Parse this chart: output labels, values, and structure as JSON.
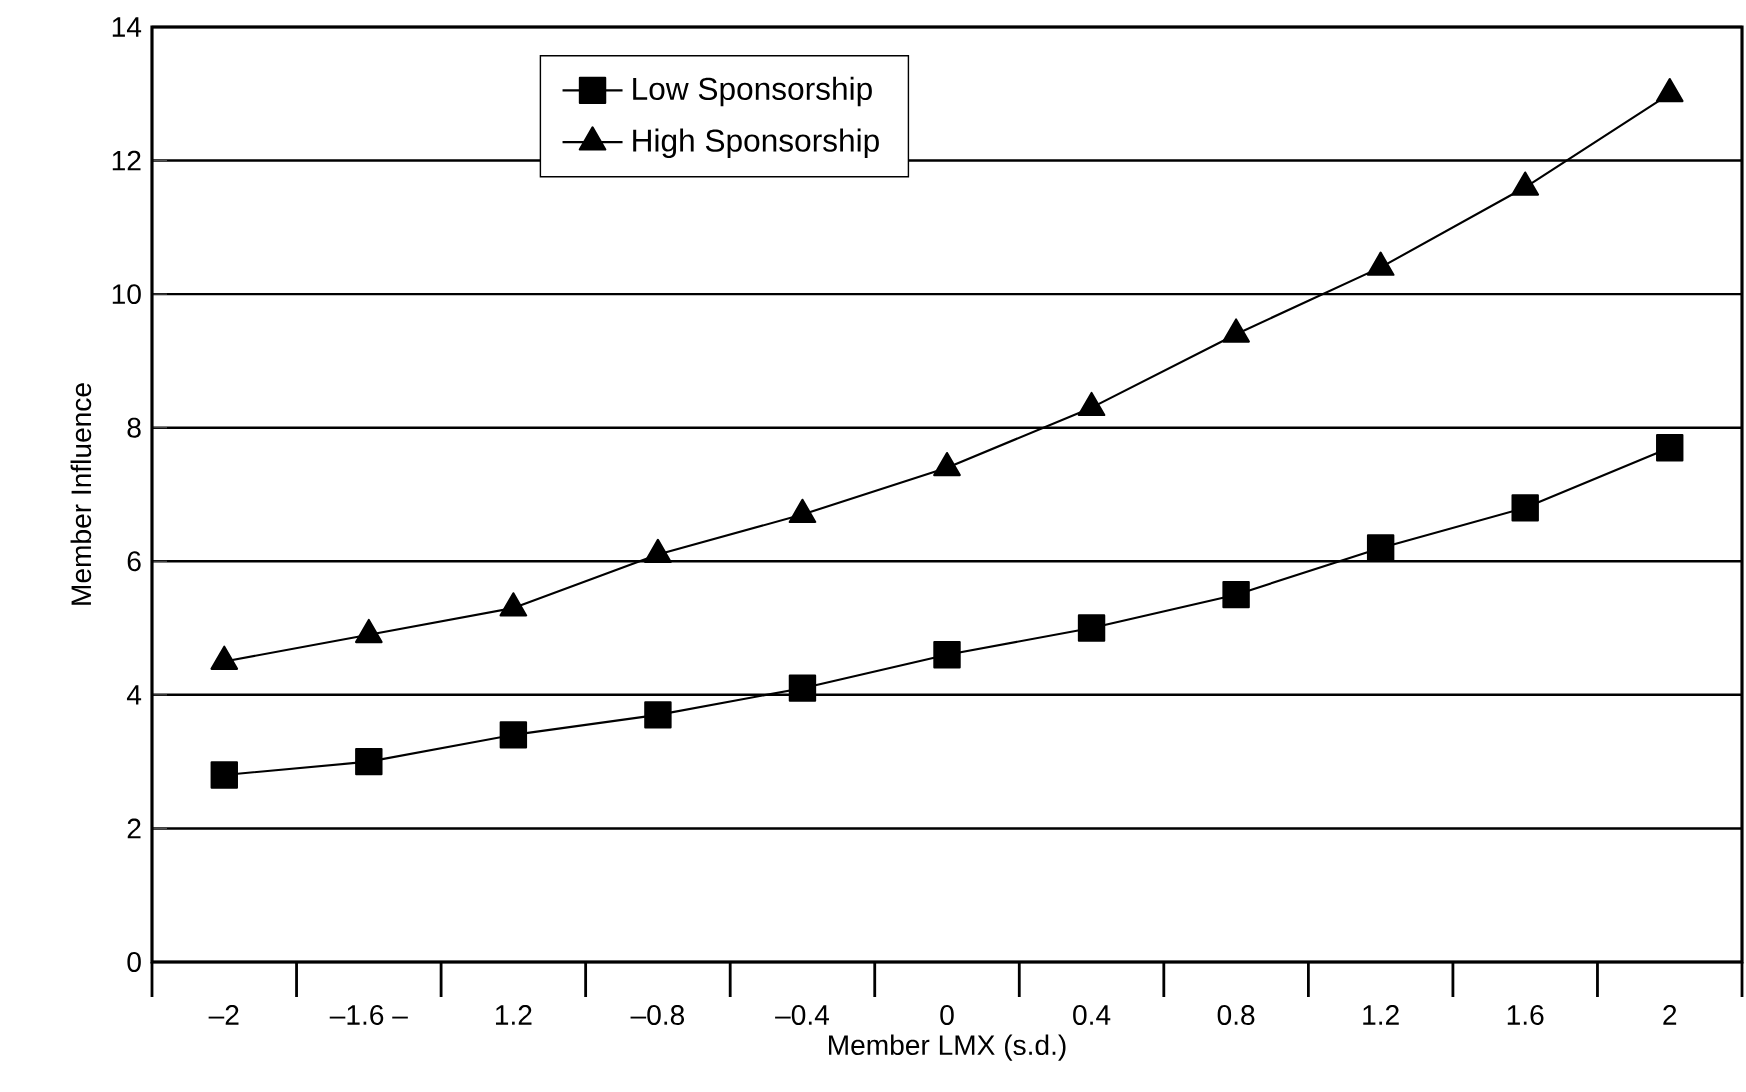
{
  "chart_data": {
    "type": "line",
    "xlabel": "Member LMX (s.d.)",
    "ylabel": "Member Influence",
    "categories": [
      "–2",
      "–1.6 –",
      "1.2",
      "–0.8",
      "–0.4",
      "0",
      "0.4",
      "0.8",
      "1.2",
      "1.6",
      "2"
    ],
    "series": [
      {
        "name": "Low Sponsorship",
        "color": "#000000",
        "marker": "square",
        "values": [
          2.8,
          3.0,
          3.4,
          3.7,
          4.1,
          4.6,
          5.0,
          5.5,
          6.2,
          6.8,
          7.7
        ]
      },
      {
        "name": "High Sponsorship",
        "color": "#000000",
        "marker": "triangle",
        "values": [
          4.5,
          4.9,
          5.3,
          6.1,
          6.7,
          7.4,
          8.3,
          9.4,
          10.4,
          11.6,
          13.0
        ]
      }
    ],
    "ylim": [
      0,
      14
    ],
    "yticks": [
      0,
      2,
      4,
      6,
      8,
      10,
      12,
      14
    ],
    "grid": "y",
    "legend": "top",
    "line_style": "solid"
  }
}
